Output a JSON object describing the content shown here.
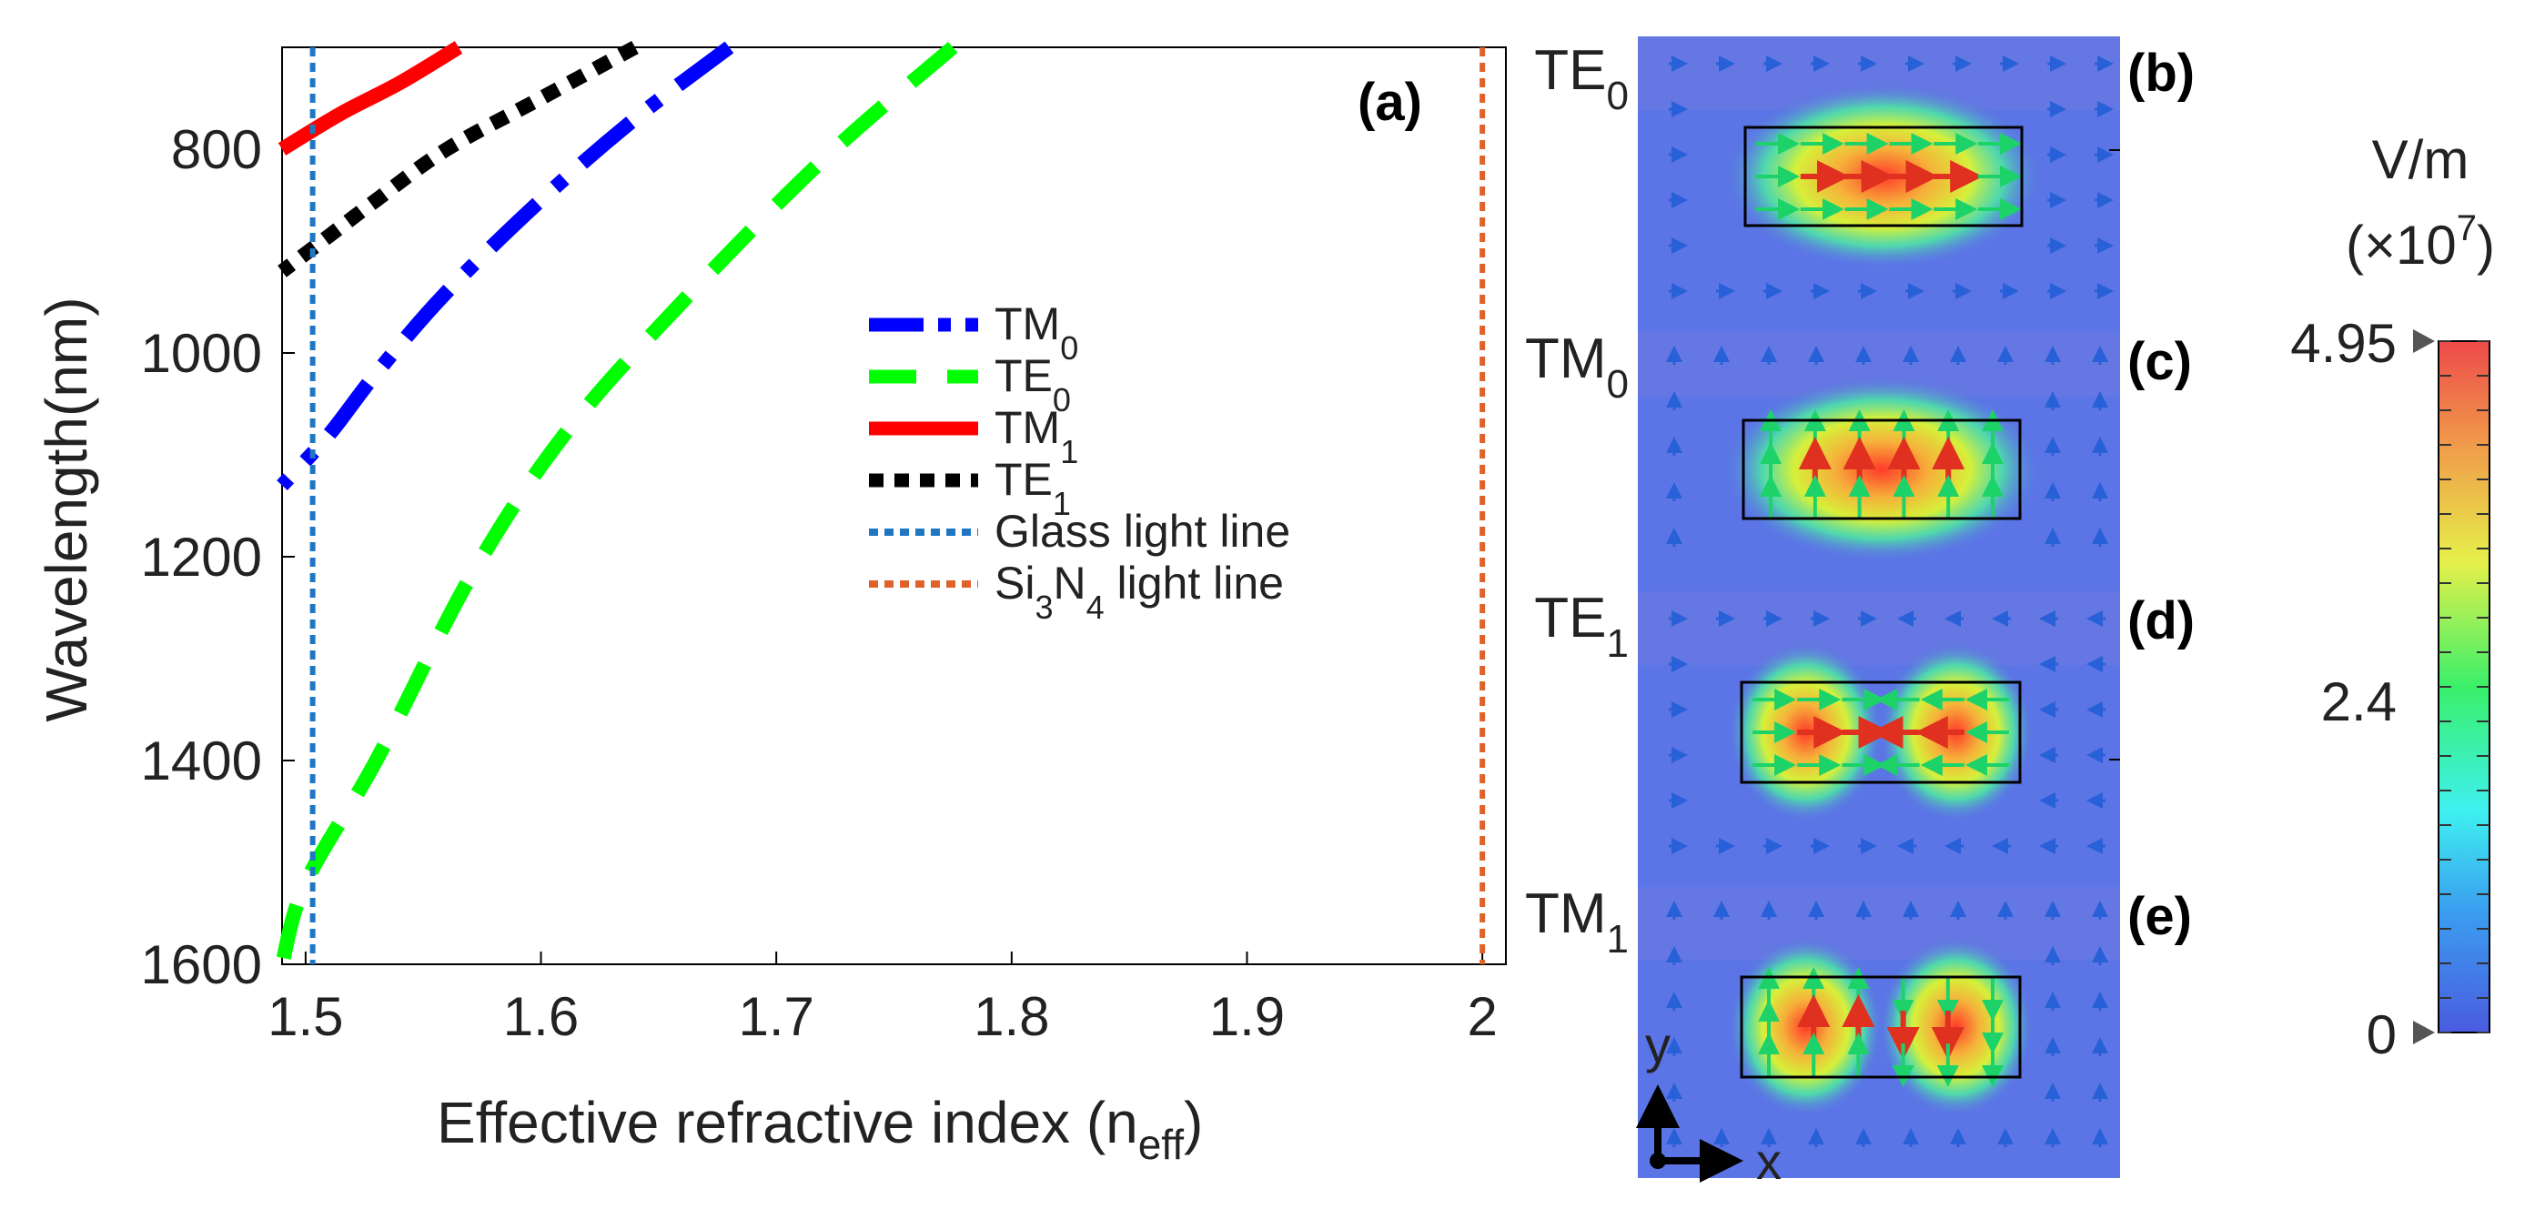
{
  "chart_data": {
    "type": "line",
    "panel_label": "(a)",
    "xlabel": "Effective refractive index (n",
    "xlabel_sub": "eff",
    "xlabel_close": ")",
    "ylabel": "Wavelength(nm)",
    "xlim": [
      1.49,
      2.01
    ],
    "ylim": [
      1600,
      700
    ],
    "x_ticks": [
      1.5,
      1.6,
      1.7,
      1.8,
      1.9,
      2.0
    ],
    "x_tick_labels": [
      "1.5",
      "1.6",
      "1.7",
      "1.8",
      "1.9",
      "2"
    ],
    "y_ticks": [
      800,
      1000,
      1200,
      1400,
      1600
    ],
    "y_tick_labels": [
      "800",
      "1000",
      "1200",
      "1400",
      "1600"
    ],
    "series": [
      {
        "name": "TM0",
        "label": "TM",
        "sub": "0",
        "color": "#0000ff",
        "style": "dashdot",
        "x": [
          1.68,
          1.64,
          1.6,
          1.56,
          1.53,
          1.51,
          1.49
        ],
        "y": [
          700,
          770,
          850,
          940,
          1020,
          1080,
          1130
        ]
      },
      {
        "name": "TE0",
        "label": "TE",
        "sub": "0",
        "color": "#00ff00",
        "style": "dash",
        "x": [
          1.775,
          1.72,
          1.66,
          1.61,
          1.57,
          1.53,
          1.5,
          1.49
        ],
        "y": [
          700,
          810,
          950,
          1080,
          1220,
          1400,
          1520,
          1600
        ]
      },
      {
        "name": "TM1",
        "label": "TM",
        "sub": "1",
        "color": "#ff0000",
        "style": "solid",
        "x": [
          1.565,
          1.54,
          1.515,
          1.49
        ],
        "y": [
          700,
          735,
          765,
          800
        ]
      },
      {
        "name": "TE1",
        "label": "TE",
        "sub": "1",
        "color": "#000000",
        "style": "dot",
        "x": [
          1.64,
          1.6,
          1.56,
          1.53,
          1.51,
          1.49
        ],
        "y": [
          700,
          750,
          800,
          850,
          885,
          920
        ]
      },
      {
        "name": "Glass light line",
        "label": "Glass light line",
        "sub": "",
        "color": "#1f77c4",
        "style": "dotted",
        "x": [
          1.503,
          1.503
        ],
        "y": [
          700,
          1600
        ]
      },
      {
        "name": "Si3N4 light line",
        "label": "Si",
        "sub": "3",
        "label2": "N",
        "sub2": "4",
        "label3": " light line",
        "color": "#e0622a",
        "style": "dotted",
        "x": [
          2.0,
          2.0
        ],
        "y": [
          700,
          1600
        ]
      }
    ]
  },
  "mode_panels": [
    {
      "label": "TE",
      "sub": "0",
      "tag": "(b)"
    },
    {
      "label": "TM",
      "sub": "0",
      "tag": "(c)"
    },
    {
      "label": "TE",
      "sub": "1",
      "tag": "(d)"
    },
    {
      "label": "TM",
      "sub": "1",
      "tag": "(e)"
    }
  ],
  "axes_arrows": {
    "x": "x",
    "y": "y"
  },
  "colorbar": {
    "unit": "V/m",
    "scale_open": "(×10",
    "scale_exp": "7",
    "scale_close": ")",
    "ticks": [
      "4.95",
      "2.4",
      "0"
    ],
    "max": 4.95,
    "mid": 2.4,
    "min": 0
  }
}
